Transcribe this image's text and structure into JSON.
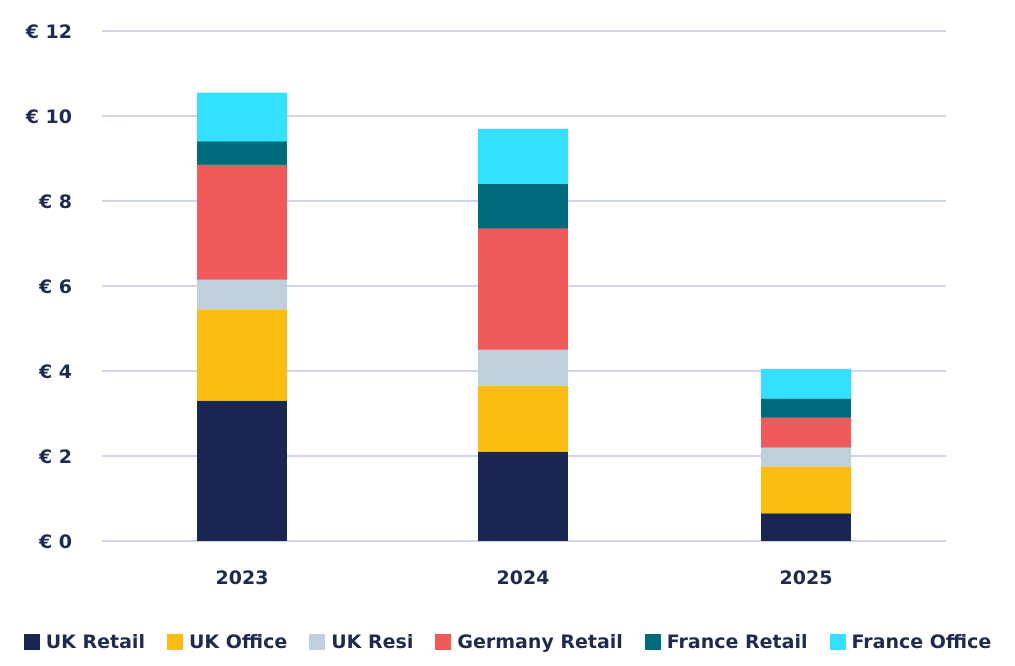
{
  "chart_data": {
    "type": "bar",
    "stacked": true,
    "categories": [
      "2023",
      "2024",
      "2025"
    ],
    "y_ticks": [
      "€ 0",
      "€ 2",
      "€ 4",
      "€ 6",
      "€ 8",
      "€ 10",
      "€ 12"
    ],
    "ylim": [
      0,
      12
    ],
    "grid": true,
    "legend_position": "bottom",
    "series": [
      {
        "name": "UK Retail",
        "color": "#1b2551",
        "values": [
          3.3,
          2.1,
          0.65
        ]
      },
      {
        "name": "UK Office",
        "color": "#fcbc12",
        "values": [
          2.15,
          1.55,
          1.1
        ]
      },
      {
        "name": "UK Resi",
        "color": "#bfcfdb",
        "values": [
          0.7,
          0.85,
          0.45
        ]
      },
      {
        "name": "Germany Retail",
        "color": "#f15a5b",
        "values": [
          2.7,
          2.85,
          0.7
        ]
      },
      {
        "name": "France Retail",
        "color": "#006b7a",
        "values": [
          0.55,
          1.05,
          0.45
        ]
      },
      {
        "name": "France Office",
        "color": "#33e0ff",
        "values": [
          1.15,
          1.3,
          0.7
        ]
      }
    ]
  }
}
